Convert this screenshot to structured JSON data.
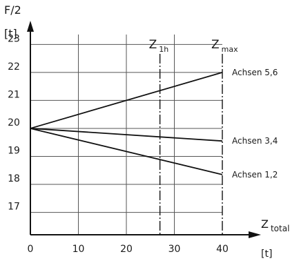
{
  "chart_data": {
    "type": "line",
    "x_ticks": [
      0,
      10,
      20,
      30,
      40
    ],
    "y_ticks": [
      17,
      18,
      19,
      20,
      21,
      22,
      23
    ],
    "xlim": [
      0,
      40
    ],
    "ylim": [
      16.2,
      23.6
    ],
    "y_axis_label": "F/2",
    "y_axis_unit": "[t]",
    "x_axis_label": "Z",
    "x_axis_label_sub": "total",
    "x_axis_unit": "[t]",
    "grid": true,
    "series": [
      {
        "name": "Achsen 5,6",
        "x": [
          0,
          40
        ],
        "y": [
          20,
          22
        ]
      },
      {
        "name": "Achsen 3,4",
        "x": [
          0,
          40
        ],
        "y": [
          20,
          19.55
        ]
      },
      {
        "name": "Achsen 1,2",
        "x": [
          0,
          40
        ],
        "y": [
          20,
          18.35
        ]
      }
    ],
    "markers": [
      {
        "label": "Z",
        "sub": "1h",
        "x": 27
      },
      {
        "label": "Z",
        "sub": "max",
        "x": 40
      }
    ]
  }
}
